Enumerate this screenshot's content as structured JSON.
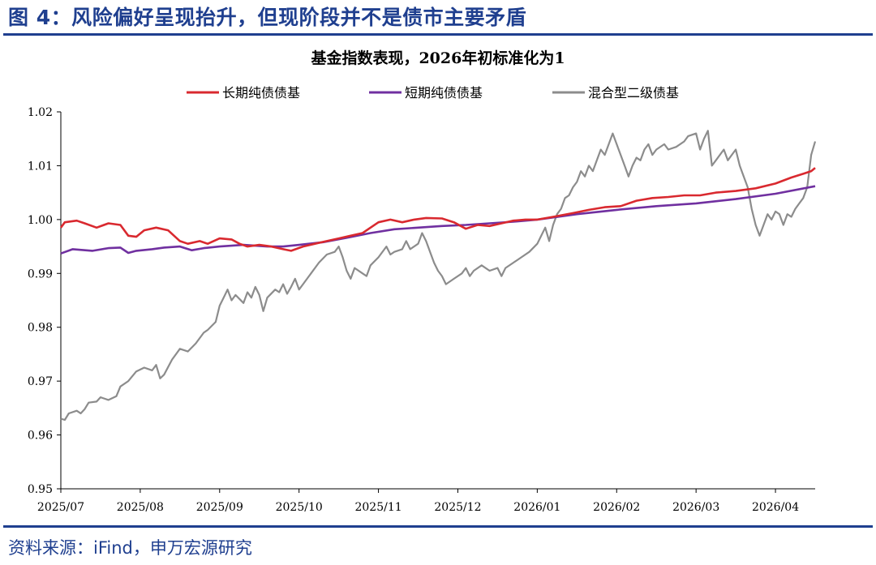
{
  "figure": {
    "title": "图 4：风险偏好呈现抬升，但现阶段并不是债市主要矛盾",
    "source": "资料来源：iFind，申万宏源研究"
  },
  "colors": {
    "brand_blue": "#1f3f8f",
    "series_long": "#d9292f",
    "series_short": "#7030a0",
    "series_mixed": "#8c8c8c"
  },
  "chart_data": {
    "type": "line",
    "title": "基金指数表现，2026年初标准化为1",
    "xlabel": "",
    "ylabel": "",
    "x_start": "2025/07",
    "x_end": "2026/04 (late)",
    "x_range": [
      0,
      9.5
    ],
    "ylim": [
      0.95,
      1.02
    ],
    "yticks": [
      "0.95",
      "0.96",
      "0.97",
      "0.98",
      "0.99",
      "1.00",
      "1.01",
      "1.02"
    ],
    "xticks": [
      {
        "label": "2025/07",
        "x": 0
      },
      {
        "label": "2025/08",
        "x": 1
      },
      {
        "label": "2025/09",
        "x": 2
      },
      {
        "label": "2025/10",
        "x": 3
      },
      {
        "label": "2025/11",
        "x": 4
      },
      {
        "label": "2025/12",
        "x": 5
      },
      {
        "label": "2026/01",
        "x": 6
      },
      {
        "label": "2026/02",
        "x": 7
      },
      {
        "label": "2026/03",
        "x": 8
      },
      {
        "label": "2026/04",
        "x": 9
      }
    ],
    "legend_position": "top",
    "series": [
      {
        "name": "长期纯债债基",
        "color": "#d9292f",
        "points": [
          [
            0,
            0.9985
          ],
          [
            0.05,
            0.9995
          ],
          [
            0.2,
            0.9998
          ],
          [
            0.3,
            0.9993
          ],
          [
            0.45,
            0.9985
          ],
          [
            0.6,
            0.9993
          ],
          [
            0.75,
            0.999
          ],
          [
            0.85,
            0.997
          ],
          [
            0.95,
            0.9968
          ],
          [
            1.05,
            0.998
          ],
          [
            1.2,
            0.9985
          ],
          [
            1.35,
            0.998
          ],
          [
            1.5,
            0.996
          ],
          [
            1.6,
            0.9955
          ],
          [
            1.75,
            0.996
          ],
          [
            1.85,
            0.9955
          ],
          [
            2.0,
            0.9965
          ],
          [
            2.15,
            0.9963
          ],
          [
            2.25,
            0.9955
          ],
          [
            2.35,
            0.995
          ],
          [
            2.5,
            0.9953
          ],
          [
            2.65,
            0.995
          ],
          [
            2.8,
            0.9945
          ],
          [
            2.9,
            0.9942
          ],
          [
            3.05,
            0.995
          ],
          [
            3.2,
            0.9955
          ],
          [
            3.35,
            0.996
          ],
          [
            3.5,
            0.9965
          ],
          [
            3.65,
            0.997
          ],
          [
            3.8,
            0.9975
          ],
          [
            3.9,
            0.9985
          ],
          [
            4.0,
            0.9995
          ],
          [
            4.15,
            1.0
          ],
          [
            4.3,
            0.9995
          ],
          [
            4.45,
            1.0
          ],
          [
            4.6,
            1.0003
          ],
          [
            4.8,
            1.0002
          ],
          [
            4.95,
            0.9995
          ],
          [
            5.1,
            0.9983
          ],
          [
            5.25,
            0.999
          ],
          [
            5.4,
            0.9988
          ],
          [
            5.55,
            0.9993
          ],
          [
            5.7,
            0.9998
          ],
          [
            5.85,
            1.0
          ],
          [
            6.0,
            1.0
          ],
          [
            6.2,
            1.0005
          ],
          [
            6.45,
            1.0012
          ],
          [
            6.65,
            1.0018
          ],
          [
            6.85,
            1.0023
          ],
          [
            7.05,
            1.0025
          ],
          [
            7.25,
            1.0035
          ],
          [
            7.45,
            1.004
          ],
          [
            7.65,
            1.0042
          ],
          [
            7.85,
            1.0045
          ],
          [
            8.05,
            1.0045
          ],
          [
            8.25,
            1.005
          ],
          [
            8.5,
            1.0053
          ],
          [
            8.75,
            1.0058
          ],
          [
            9.0,
            1.0067
          ],
          [
            9.2,
            1.0078
          ],
          [
            9.35,
            1.0085
          ],
          [
            9.45,
            1.009
          ],
          [
            9.5,
            1.0096
          ]
        ]
      },
      {
        "name": "短期纯债债基",
        "color": "#7030a0",
        "points": [
          [
            0,
            0.9937
          ],
          [
            0.15,
            0.9945
          ],
          [
            0.4,
            0.9942
          ],
          [
            0.6,
            0.9947
          ],
          [
            0.75,
            0.9948
          ],
          [
            0.85,
            0.9938
          ],
          [
            0.95,
            0.9942
          ],
          [
            1.15,
            0.9945
          ],
          [
            1.3,
            0.9948
          ],
          [
            1.5,
            0.995
          ],
          [
            1.65,
            0.9943
          ],
          [
            1.8,
            0.9947
          ],
          [
            2.0,
            0.995
          ],
          [
            2.3,
            0.9953
          ],
          [
            2.6,
            0.995
          ],
          [
            2.8,
            0.995
          ],
          [
            3.0,
            0.9953
          ],
          [
            3.3,
            0.9958
          ],
          [
            3.6,
            0.9966
          ],
          [
            3.9,
            0.9975
          ],
          [
            4.2,
            0.9982
          ],
          [
            4.5,
            0.9985
          ],
          [
            4.8,
            0.9988
          ],
          [
            5.1,
            0.999
          ],
          [
            5.4,
            0.9993
          ],
          [
            5.7,
            0.9996
          ],
          [
            6.0,
            1.0
          ],
          [
            6.5,
            1.001
          ],
          [
            7.0,
            1.0018
          ],
          [
            7.5,
            1.0025
          ],
          [
            8.0,
            1.003
          ],
          [
            8.5,
            1.0038
          ],
          [
            9.0,
            1.0048
          ],
          [
            9.5,
            1.0062
          ]
        ]
      },
      {
        "name": "混合型二级债基",
        "color": "#8c8c8c",
        "points": [
          [
            0,
            0.963
          ],
          [
            0.05,
            0.9628
          ],
          [
            0.1,
            0.964
          ],
          [
            0.2,
            0.9645
          ],
          [
            0.25,
            0.964
          ],
          [
            0.3,
            0.9648
          ],
          [
            0.35,
            0.966
          ],
          [
            0.45,
            0.9662
          ],
          [
            0.5,
            0.967
          ],
          [
            0.6,
            0.9665
          ],
          [
            0.7,
            0.9672
          ],
          [
            0.75,
            0.969
          ],
          [
            0.85,
            0.97
          ],
          [
            0.95,
            0.9718
          ],
          [
            1.05,
            0.9725
          ],
          [
            1.15,
            0.972
          ],
          [
            1.2,
            0.973
          ],
          [
            1.25,
            0.9705
          ],
          [
            1.3,
            0.9712
          ],
          [
            1.4,
            0.974
          ],
          [
            1.5,
            0.976
          ],
          [
            1.6,
            0.9755
          ],
          [
            1.7,
            0.977
          ],
          [
            1.8,
            0.979
          ],
          [
            1.85,
            0.9795
          ],
          [
            1.95,
            0.981
          ],
          [
            2.0,
            0.984
          ],
          [
            2.05,
            0.9855
          ],
          [
            2.1,
            0.987
          ],
          [
            2.15,
            0.985
          ],
          [
            2.2,
            0.986
          ],
          [
            2.3,
            0.9845
          ],
          [
            2.35,
            0.9865
          ],
          [
            2.4,
            0.9855
          ],
          [
            2.45,
            0.9875
          ],
          [
            2.5,
            0.986
          ],
          [
            2.55,
            0.983
          ],
          [
            2.6,
            0.9855
          ],
          [
            2.7,
            0.987
          ],
          [
            2.75,
            0.9865
          ],
          [
            2.8,
            0.988
          ],
          [
            2.85,
            0.9862
          ],
          [
            2.9,
            0.9875
          ],
          [
            2.95,
            0.989
          ],
          [
            3.0,
            0.987
          ],
          [
            3.05,
            0.988
          ],
          [
            3.15,
            0.99
          ],
          [
            3.25,
            0.992
          ],
          [
            3.35,
            0.9935
          ],
          [
            3.45,
            0.994
          ],
          [
            3.5,
            0.995
          ],
          [
            3.55,
            0.993
          ],
          [
            3.6,
            0.9905
          ],
          [
            3.65,
            0.989
          ],
          [
            3.7,
            0.991
          ],
          [
            3.8,
            0.99
          ],
          [
            3.85,
            0.9895
          ],
          [
            3.9,
            0.9915
          ],
          [
            4.0,
            0.993
          ],
          [
            4.1,
            0.995
          ],
          [
            4.15,
            0.9935
          ],
          [
            4.2,
            0.994
          ],
          [
            4.3,
            0.9945
          ],
          [
            4.35,
            0.996
          ],
          [
            4.4,
            0.9945
          ],
          [
            4.5,
            0.9955
          ],
          [
            4.55,
            0.9975
          ],
          [
            4.6,
            0.996
          ],
          [
            4.65,
            0.994
          ],
          [
            4.7,
            0.992
          ],
          [
            4.75,
            0.9905
          ],
          [
            4.8,
            0.9895
          ],
          [
            4.85,
            0.988
          ],
          [
            4.95,
            0.989
          ],
          [
            5.05,
            0.99
          ],
          [
            5.1,
            0.991
          ],
          [
            5.15,
            0.9895
          ],
          [
            5.2,
            0.9905
          ],
          [
            5.3,
            0.9915
          ],
          [
            5.4,
            0.9905
          ],
          [
            5.5,
            0.991
          ],
          [
            5.55,
            0.9895
          ],
          [
            5.6,
            0.991
          ],
          [
            5.7,
            0.992
          ],
          [
            5.8,
            0.993
          ],
          [
            5.9,
            0.994
          ],
          [
            6.0,
            0.9955
          ],
          [
            6.05,
            0.997
          ],
          [
            6.1,
            0.9985
          ],
          [
            6.15,
            0.996
          ],
          [
            6.2,
            0.999
          ],
          [
            6.25,
            1.001
          ],
          [
            6.3,
            1.002
          ],
          [
            6.35,
            1.004
          ],
          [
            6.4,
            1.0045
          ],
          [
            6.45,
            1.006
          ],
          [
            6.5,
            1.007
          ],
          [
            6.55,
            1.009
          ],
          [
            6.6,
            1.008
          ],
          [
            6.65,
            1.01
          ],
          [
            6.7,
            1.009
          ],
          [
            6.75,
            1.011
          ],
          [
            6.8,
            1.013
          ],
          [
            6.85,
            1.012
          ],
          [
            6.9,
            1.014
          ],
          [
            6.95,
            1.016
          ],
          [
            7.0,
            1.014
          ],
          [
            7.05,
            1.012
          ],
          [
            7.1,
            1.01
          ],
          [
            7.15,
            1.008
          ],
          [
            7.2,
            1.01
          ],
          [
            7.25,
            1.0115
          ],
          [
            7.3,
            1.011
          ],
          [
            7.35,
            1.013
          ],
          [
            7.4,
            1.014
          ],
          [
            7.45,
            1.012
          ],
          [
            7.5,
            1.013
          ],
          [
            7.6,
            1.014
          ],
          [
            7.65,
            1.013
          ],
          [
            7.75,
            1.0135
          ],
          [
            7.85,
            1.0145
          ],
          [
            7.9,
            1.0155
          ],
          [
            8.0,
            1.016
          ],
          [
            8.05,
            1.013
          ],
          [
            8.1,
            1.015
          ],
          [
            8.15,
            1.0165
          ],
          [
            8.2,
            1.01
          ],
          [
            8.25,
            1.011
          ],
          [
            8.3,
            1.012
          ],
          [
            8.35,
            1.013
          ],
          [
            8.4,
            1.011
          ],
          [
            8.45,
            1.012
          ],
          [
            8.5,
            1.013
          ],
          [
            8.55,
            1.01
          ],
          [
            8.6,
            1.008
          ],
          [
            8.65,
            1.006
          ],
          [
            8.7,
            1.002
          ],
          [
            8.75,
            0.999
          ],
          [
            8.8,
            0.997
          ],
          [
            8.85,
            0.999
          ],
          [
            8.9,
            1.001
          ],
          [
            8.95,
            1.0
          ],
          [
            9.0,
            1.0015
          ],
          [
            9.05,
            1.001
          ],
          [
            9.1,
            0.999
          ],
          [
            9.15,
            1.001
          ],
          [
            9.2,
            1.0005
          ],
          [
            9.25,
            1.002
          ],
          [
            9.3,
            1.003
          ],
          [
            9.35,
            1.004
          ],
          [
            9.4,
            1.006
          ],
          [
            9.45,
            1.012
          ],
          [
            9.5,
            1.0145
          ]
        ]
      }
    ]
  }
}
